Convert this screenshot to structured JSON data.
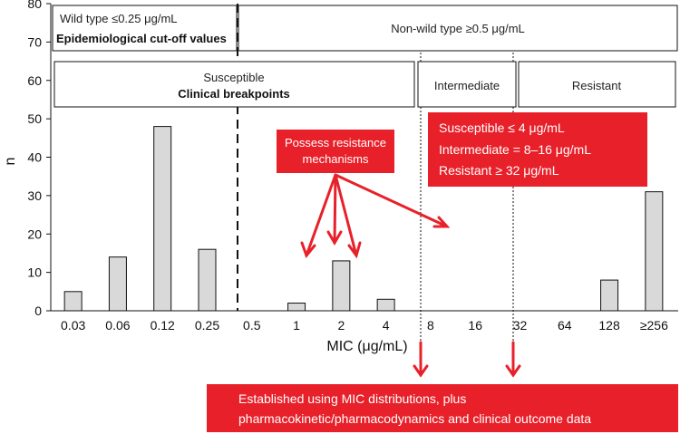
{
  "chart_data": {
    "type": "bar",
    "xlabel": "MIC (μg/mL)",
    "ylabel": "n",
    "ylim": [
      0,
      80
    ],
    "yticks": [
      0,
      10,
      20,
      30,
      40,
      50,
      60,
      70,
      80
    ],
    "categories": [
      "0.03",
      "0.06",
      "0.12",
      "0.25",
      "0.5",
      "1",
      "2",
      "4",
      "8",
      "16",
      "32",
      "64",
      "128",
      "≥256"
    ],
    "values": [
      5,
      14,
      48,
      16,
      0,
      2,
      13,
      3,
      0,
      0,
      0,
      0,
      8,
      31
    ],
    "grid": false,
    "bar_color": "#d9d9d9",
    "accent_color": "#e8202a"
  },
  "boxes": {
    "wild_type_line1": "Wild type ≤0.25 μg/mL",
    "wild_type_line2": "Epidemiological cut-off values",
    "non_wild_type": "Non-wild type  ≥0.5 μg/mL",
    "susceptible_line1": "Susceptible",
    "susceptible_line2": "Clinical breakpoints",
    "intermediate": "Intermediate",
    "resistant": "Resistant"
  },
  "annotations": {
    "resistance_line1": "Possess resistance",
    "resistance_line2": "mechanisms",
    "breakpoints_line1": "Susceptible ≤ 4 μg/mL",
    "breakpoints_line2": "Intermediate = 8–16 μg/mL",
    "breakpoints_line3": "Resistant ≥ 32 μg/mL",
    "established_line1": "Established using MIC distributions, plus",
    "established_line2": "pharmacokinetic/pharmacodynamics and clinical outcome data"
  }
}
